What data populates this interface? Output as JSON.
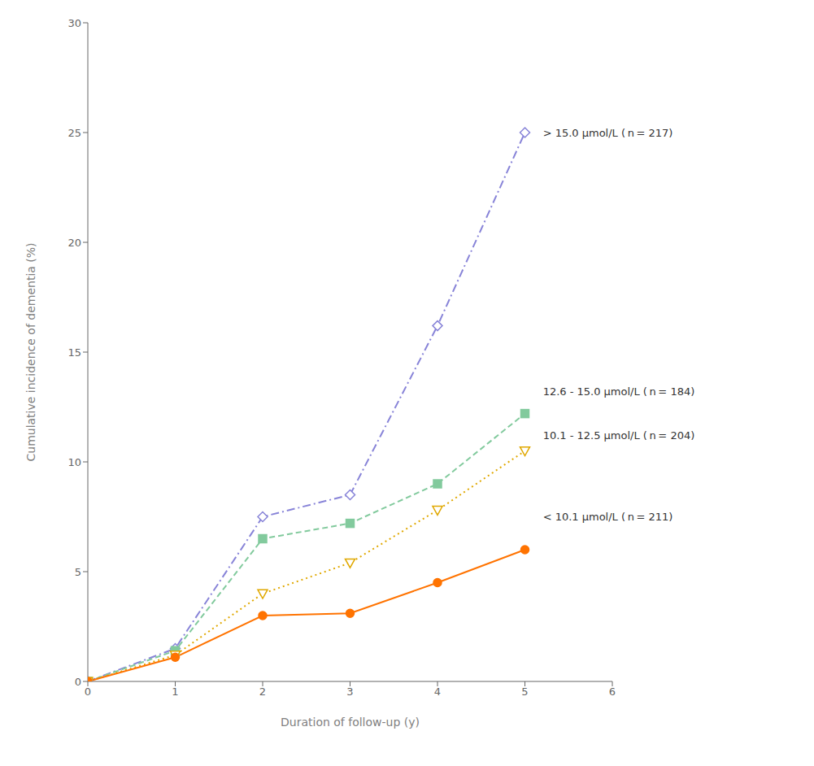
{
  "chart_data": {
    "type": "line",
    "xlabel": "Duration of follow-up (y)",
    "ylabel": "Cumulative incidence of dementia (%)",
    "xlim": [
      0,
      6
    ],
    "ylim": [
      0,
      30
    ],
    "xticks": [
      0,
      1,
      2,
      3,
      4,
      5,
      6
    ],
    "yticks": [
      0,
      5,
      10,
      15,
      20,
      25,
      30
    ],
    "grid": false,
    "series": [
      {
        "color": "#8884d8",
        "marker": "diamond_open",
        "line_style": "dashdot",
        "x": [
          0,
          1,
          2,
          3,
          4,
          5
        ],
        "values": [
          0,
          1.5,
          7.5,
          8.5,
          16.2,
          25.0
        ]
      },
      {
        "color": "#82ca9d",
        "marker": "square",
        "line_style": "dashed",
        "x": [
          0,
          1,
          2,
          3,
          4,
          5
        ],
        "values": [
          0,
          1.4,
          6.5,
          7.2,
          9.0,
          12.2
        ]
      },
      {
        "color": "#e0a800",
        "marker": "triangle_down_open",
        "line_style": "dotted",
        "x": [
          0,
          1,
          2,
          3,
          4,
          5
        ],
        "values": [
          0,
          1.2,
          4.0,
          5.4,
          7.8,
          10.5
        ]
      },
      {
        "color": "#ff7300",
        "marker": "circle",
        "line_style": "solid",
        "x": [
          0,
          1,
          2,
          3,
          4,
          5
        ],
        "values": [
          0,
          1.1,
          3.0,
          3.1,
          4.5,
          6.0
        ]
      }
    ],
    "annotations": [
      {
        "text": "> 15.0 μmol/L ( n = 217)",
        "x": 5.15,
        "y": 25.0
      },
      {
        "text": "12.6 - 15.0 μmol/L ( n = 184)",
        "x": 5.15,
        "y": 13.2
      },
      {
        "text": "10.1 - 12.5 μmol/L ( n = 204)",
        "x": 5.15,
        "y": 11.2
      },
      {
        "text": "< 10.1 μmol/L ( n = 211)",
        "x": 5.15,
        "y": 7.5
      }
    ]
  }
}
